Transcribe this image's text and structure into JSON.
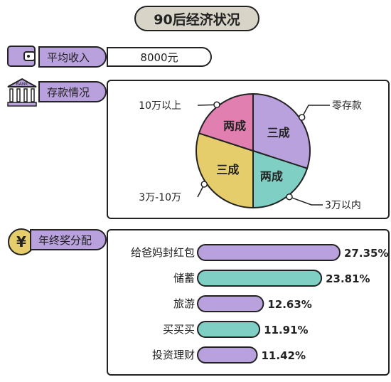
{
  "title": "90后经济状况",
  "income": {
    "label": "平均收入",
    "value": "8000元"
  },
  "savings": {
    "label": "存款情况",
    "bank_text": "BANK"
  },
  "bonus": {
    "label": "年终奖分配",
    "icon_symbol": "¥"
  },
  "icons": {
    "wallet": "wallet-icon",
    "bank": "bank-icon",
    "yen": "yen-coin-icon"
  },
  "colors": {
    "purple": "#b9a1dd",
    "teal": "#7fcfc4",
    "pink": "#e07fb0",
    "yellow": "#e6cd6c"
  },
  "chart_data": [
    {
      "type": "pie",
      "slices": [
        {
          "name": "零存款",
          "label": "三成",
          "value": 3,
          "color": "#b9a1dd"
        },
        {
          "name": "3万以内",
          "label": "两成",
          "value": 2,
          "color": "#7fcfc4"
        },
        {
          "name": "3万-10万",
          "label": "三成",
          "value": 3,
          "color": "#e6cd6c"
        },
        {
          "name": "10万以上",
          "label": "两成",
          "value": 2,
          "color": "#e07fb0"
        }
      ]
    },
    {
      "type": "bar",
      "orientation": "horizontal",
      "categories": [
        "给爸妈封红包",
        "储蓄",
        "旅游",
        "买买买",
        "投资理财"
      ],
      "values": [
        27.35,
        23.81,
        12.63,
        11.91,
        11.42
      ],
      "value_labels": [
        "27.35%",
        "23.81%",
        "12.63%",
        "11.91%",
        "11.42%"
      ],
      "colors": [
        "#b9a1dd",
        "#7fcfc4",
        "#b9a1dd",
        "#7fcfc4",
        "#b9a1dd"
      ]
    }
  ]
}
